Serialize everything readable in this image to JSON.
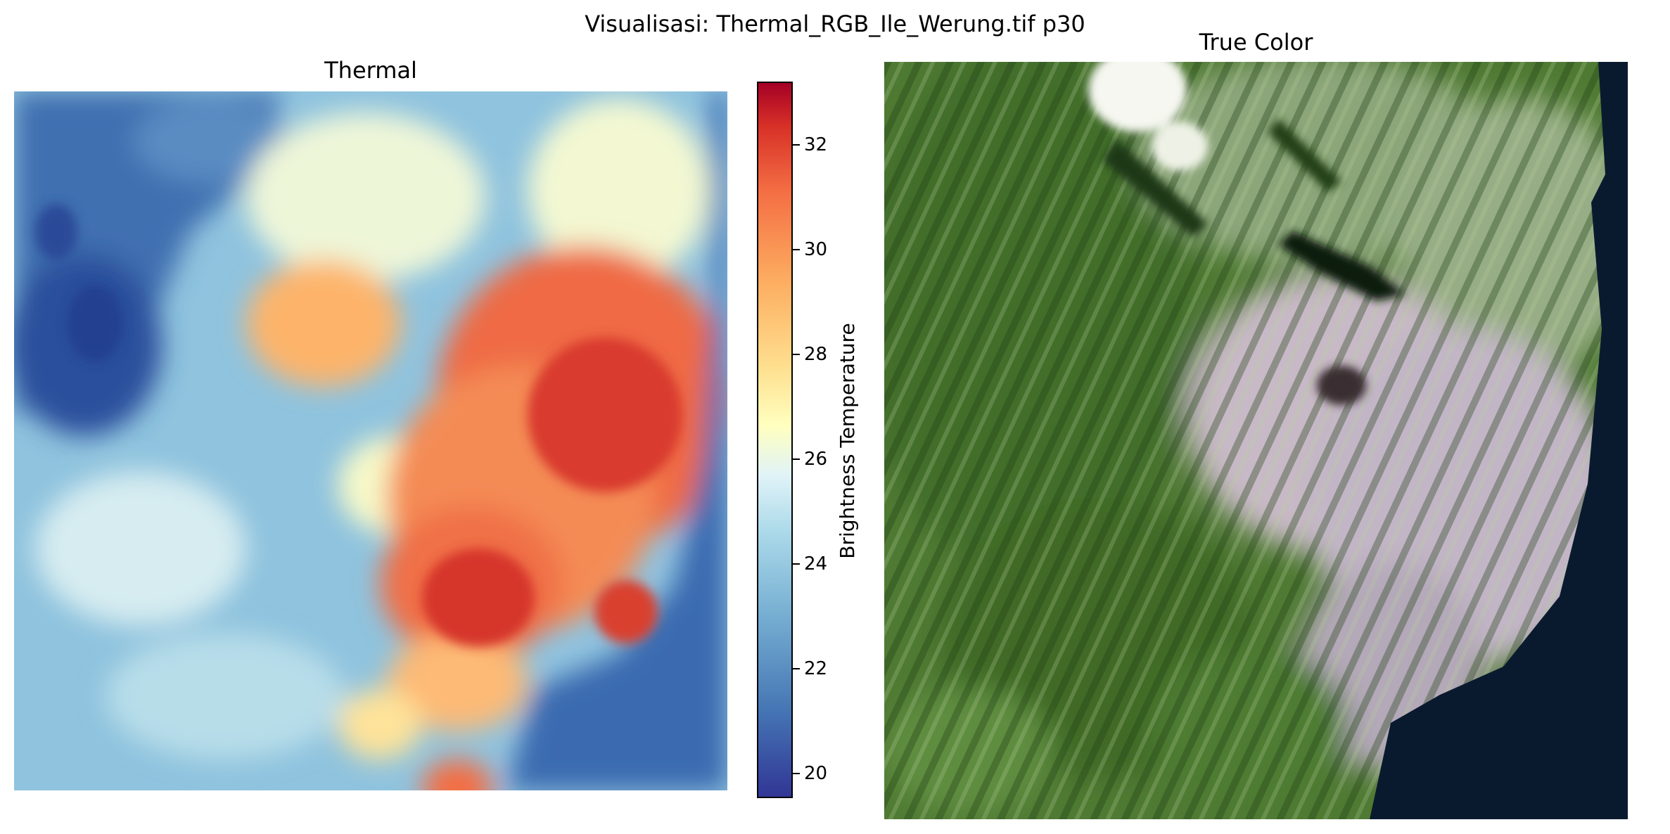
{
  "figure": {
    "suptitle": "Visualisasi: Thermal_RGB_Ile_Werung.tif p30"
  },
  "thermal_panel": {
    "title": "Thermal",
    "colormap": [
      "#313695",
      "#4575b4",
      "#74add1",
      "#abd9e9",
      "#e0f3f8",
      "#ffffbf",
      "#fee090",
      "#fdae61",
      "#f46d43",
      "#d73027",
      "#a50026"
    ]
  },
  "colorbar": {
    "label": "Brightness Temperature",
    "ticks": [
      "20",
      "22",
      "24",
      "26",
      "28",
      "30",
      "32"
    ]
  },
  "truecolor_panel": {
    "title": "True Color"
  }
}
